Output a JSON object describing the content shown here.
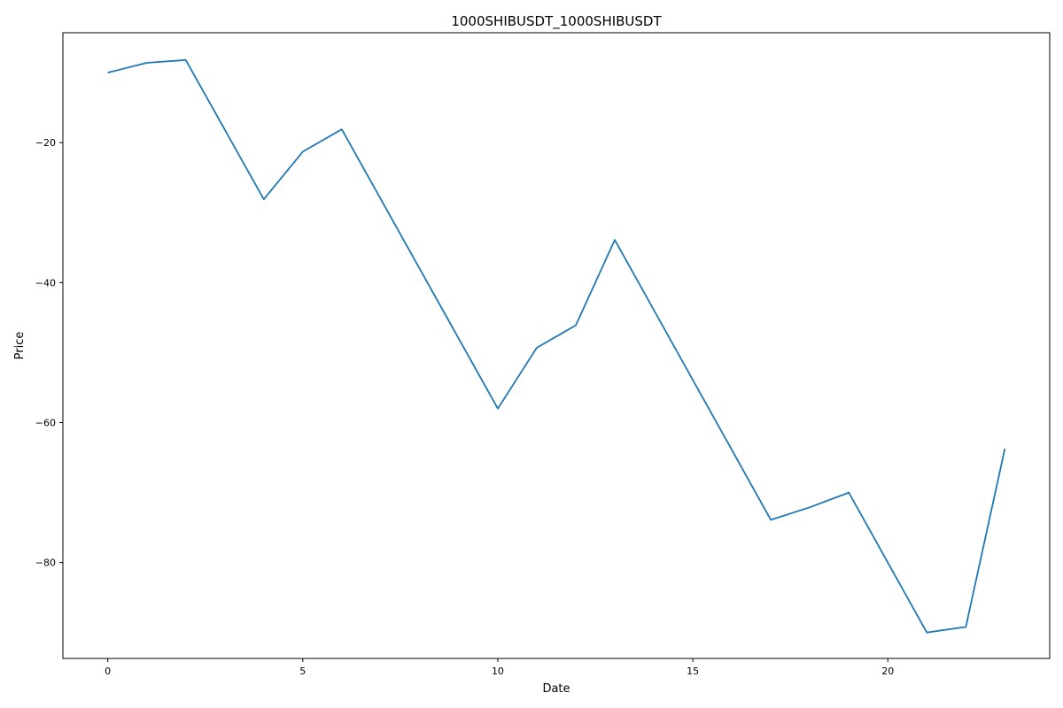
{
  "chart_data": {
    "type": "line",
    "title": "1000SHIBUSDT_1000SHIBUSDT",
    "xlabel": "Date",
    "ylabel": "Price",
    "xlim": [
      -1.15,
      24.15
    ],
    "ylim": [
      -93.7,
      -4.3
    ],
    "x_ticks": [
      0,
      5,
      10,
      15,
      20
    ],
    "x_tick_labels": [
      "0",
      "5",
      "10",
      "15",
      "20"
    ],
    "y_ticks": [
      -20,
      -40,
      -60,
      -80
    ],
    "y_tick_labels": [
      "−20",
      "−40",
      "−60",
      "−80"
    ],
    "grid": false,
    "series": [
      {
        "color": "#1f77b4",
        "x": [
          0,
          1,
          2,
          4,
          5,
          6,
          10,
          11,
          12,
          13,
          17,
          18,
          19,
          21,
          22,
          23
        ],
        "y": [
          -10.0,
          -8.6,
          -8.2,
          -28.1,
          -21.3,
          -18.1,
          -58.0,
          -49.3,
          -46.1,
          -33.9,
          -73.9,
          -72.1,
          -70.0,
          -90.0,
          -89.2,
          -63.7
        ]
      }
    ]
  }
}
